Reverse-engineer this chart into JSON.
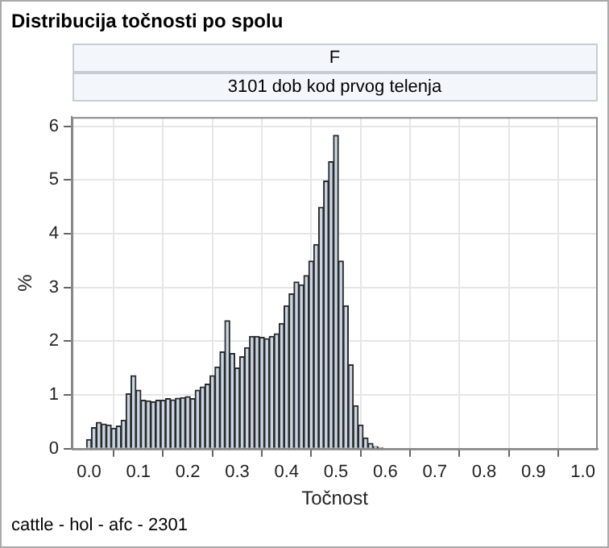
{
  "chart_data": {
    "type": "histogram",
    "title": "Distribucija točnosti po spolu",
    "subtitle": "F",
    "annotations": [
      "3101 dob kod prvog telenja",
      "cattle - hol - afc - 2301"
    ],
    "xlabel": "Točnost",
    "ylabel": "%",
    "color": "#c9d5e3",
    "bins": [
      -0.005,
      0.005,
      0.015,
      0.025,
      0.035,
      0.045,
      0.055,
      0.065,
      0.075,
      0.085,
      0.095,
      0.105,
      0.115,
      0.125,
      0.135,
      0.145,
      0.155,
      0.165,
      0.175,
      0.185,
      0.195,
      0.205,
      0.215,
      0.225,
      0.235,
      0.245,
      0.255,
      0.265,
      0.275,
      0.285,
      0.295,
      0.305,
      0.315,
      0.325,
      0.335,
      0.345,
      0.355,
      0.365,
      0.375,
      0.385,
      0.395,
      0.405,
      0.415,
      0.425,
      0.435,
      0.445,
      0.455,
      0.465,
      0.475,
      0.485,
      0.495,
      0.505,
      0.515,
      0.525,
      0.535,
      0.545,
      0.555,
      0.565,
      0.575,
      0.585,
      0.595,
      0.605,
      0.615,
      0.625,
      0.635,
      0.645,
      0.655,
      0.665,
      0.675,
      0.685,
      0.695,
      0.705,
      0.715,
      0.725,
      0.735,
      0.745,
      0.755,
      0.765,
      0.775,
      0.785,
      0.795,
      0.805,
      0.815,
      0.825,
      0.835,
      0.845,
      0.855,
      0.865,
      0.875,
      0.885,
      0.895,
      0.905,
      0.915,
      0.925,
      0.935,
      0.945,
      0.955,
      0.965,
      0.975,
      0.985,
      0.995,
      1.005
    ],
    "values": [
      0.17,
      0.39,
      0.49,
      0.46,
      0.44,
      0.38,
      0.42,
      0.53,
      1.02,
      1.36,
      1.09,
      0.9,
      0.89,
      0.87,
      0.9,
      0.9,
      0.93,
      0.91,
      0.94,
      0.95,
      0.97,
      0.93,
      1.09,
      1.15,
      1.2,
      1.36,
      1.52,
      1.8,
      2.38,
      1.77,
      1.5,
      1.71,
      1.88,
      2.09,
      2.09,
      2.07,
      2.05,
      2.09,
      2.14,
      2.33,
      2.66,
      2.88,
      3.1,
      3.05,
      3.22,
      3.49,
      3.8,
      4.49,
      4.98,
      5.34,
      5.83,
      3.49,
      2.66,
      1.56,
      0.8,
      0.44,
      0.2,
      0.1,
      0.04,
      0.02,
      0,
      0,
      0,
      0,
      0,
      0,
      0,
      0,
      0,
      0,
      0,
      0,
      0,
      0,
      0,
      0,
      0,
      0,
      0,
      0,
      0,
      0,
      0,
      0,
      0,
      0,
      0,
      0,
      0,
      0,
      0,
      0,
      0,
      0,
      0,
      0,
      0,
      0,
      0,
      0,
      0
    ],
    "xlim": [
      -0.035,
      1.03
    ],
    "ylim": [
      0,
      6.17
    ],
    "xticks": [
      {
        "value": 0,
        "label": "0.0"
      },
      {
        "value": 0.1,
        "label": "0.1"
      },
      {
        "value": 0.2,
        "label": "0.2"
      },
      {
        "value": 0.3,
        "label": "0.3"
      },
      {
        "value": 0.4,
        "label": "0.4"
      },
      {
        "value": 0.5,
        "label": "0.5"
      },
      {
        "value": 0.6,
        "label": "0.6"
      },
      {
        "value": 0.7,
        "label": "0.7"
      },
      {
        "value": 0.8,
        "label": "0.8"
      },
      {
        "value": 0.9,
        "label": "0.9"
      },
      {
        "value": 1,
        "label": "1.0"
      }
    ],
    "yticks": [
      0,
      1,
      2,
      3,
      4,
      5,
      6
    ],
    "grid": true
  }
}
